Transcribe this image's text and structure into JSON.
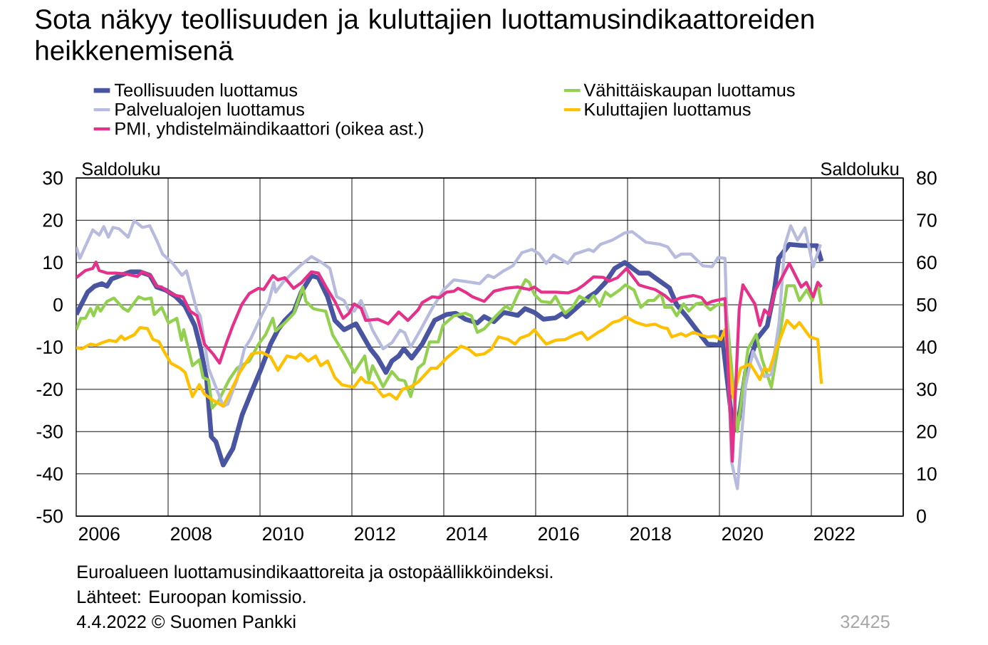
{
  "chart_data": {
    "type": "line",
    "title": "Sota näkyy teollisuuden ja kuluttajien luottamusindikaattoreiden heikkenemisenä",
    "ylabel": "Saldoluku",
    "y2label": "Saldoluku",
    "annotations": [
      "Euroalueen luottamusindikaattoreita ja ostopäällikköindeksi.",
      "Lähteet: Euroopan komissio.",
      "4.4.2022 © Suomen Pankki",
      "32425"
    ],
    "xlim": [
      2006,
      2024
    ],
    "xticks": [
      {
        "value": 2006.5,
        "label": "2006"
      },
      {
        "value": 2008.5,
        "label": "2008"
      },
      {
        "value": 2010.5,
        "label": "2010"
      },
      {
        "value": 2012.5,
        "label": "2012"
      },
      {
        "value": 2014.5,
        "label": "2014"
      },
      {
        "value": 2016.5,
        "label": "2016"
      },
      {
        "value": 2018.5,
        "label": "2018"
      },
      {
        "value": 2020.5,
        "label": "2020"
      },
      {
        "value": 2022.5,
        "label": "2022"
      },
      {
        "value": 2008,
        "label": null
      },
      {
        "value": 2010,
        "label": null
      },
      {
        "value": 2012,
        "label": null
      },
      {
        "value": 2014,
        "label": null
      },
      {
        "value": 2016,
        "label": null
      },
      {
        "value": 2018,
        "label": null
      },
      {
        "value": 2020,
        "label": null
      },
      {
        "value": 2022,
        "label": null
      }
    ],
    "ylim": [
      -50,
      30
    ],
    "yticks": [
      -50,
      -40,
      -30,
      -20,
      -10,
      0,
      10,
      20,
      30
    ],
    "y2lim": [
      0,
      80
    ],
    "y2ticks": [
      0,
      10,
      20,
      30,
      40,
      50,
      60,
      70,
      80
    ],
    "grid": true,
    "legend": "top",
    "series": [
      {
        "name": "Teollisuuden luottamus",
        "color": "#4a55a2",
        "x": [
          2006.0,
          2006.25,
          2006.4,
          2006.56,
          2006.67,
          2006.77,
          2006.98,
          2007.18,
          2007.39,
          2007.6,
          2007.75,
          2007.96,
          2008.17,
          2008.37,
          2008.58,
          2008.71,
          2008.84,
          2008.94,
          2009.04,
          2009.2,
          2009.41,
          2009.61,
          2009.82,
          2010.03,
          2010.23,
          2010.39,
          2010.54,
          2010.74,
          2010.9,
          2011.12,
          2011.27,
          2011.47,
          2011.63,
          2011.83,
          2012.09,
          2012.4,
          2012.56,
          2012.74,
          2012.87,
          2013.02,
          2013.13,
          2013.3,
          2013.53,
          2013.8,
          2014.06,
          2014.26,
          2014.47,
          2014.73,
          2014.88,
          2015.09,
          2015.3,
          2015.61,
          2015.77,
          2015.97,
          2016.17,
          2016.43,
          2016.59,
          2016.67,
          2016.9,
          2017.16,
          2017.32,
          2017.52,
          2017.72,
          2017.94,
          2018.25,
          2018.46,
          2018.65,
          2018.91,
          2019.07,
          2019.3,
          2019.58,
          2019.74,
          2020.0,
          2020.05,
          2020.3,
          2020.42,
          2020.57,
          2020.82,
          2021.04,
          2021.19,
          2021.29,
          2021.52,
          2021.81,
          2022.12,
          2022.22
        ],
        "values": [
          -2.3,
          3,
          4.4,
          5,
          4.4,
          6.1,
          7,
          7.8,
          7.8,
          7,
          4.2,
          3.4,
          1.9,
          -0.3,
          -4.9,
          -10.4,
          -17.7,
          -31.2,
          -32.4,
          -37.9,
          -34,
          -26.1,
          -20.5,
          -15,
          -9.3,
          -5.9,
          -3.7,
          -1.5,
          3,
          6.9,
          6.4,
          1.9,
          -3.7,
          -5.9,
          -4.5,
          -10.4,
          -12.6,
          -16,
          -13.3,
          -12.1,
          -10.4,
          -12.6,
          -9.3,
          -3.7,
          -2.3,
          -2,
          -3.4,
          -4.3,
          -2.8,
          -4,
          -1.8,
          -2.5,
          -0.9,
          -1.8,
          -3.4,
          -3.1,
          -2,
          -2.8,
          -0.6,
          1.9,
          3,
          5.3,
          8.6,
          10,
          7.5,
          7.5,
          6,
          4,
          0,
          -3,
          -7,
          -9.3,
          -9.5,
          -6.5,
          -30,
          -27,
          -16,
          -8,
          -5,
          3,
          11,
          14.3,
          14,
          14,
          10.3
        ]
      },
      {
        "name": "Vähittäiskaupan luottamus",
        "color": "#92d050",
        "x": [
          2006.0,
          2006.1,
          2006.2,
          2006.31,
          2006.38,
          2006.46,
          2006.53,
          2006.67,
          2006.82,
          2007.03,
          2007.13,
          2007.36,
          2007.49,
          2007.63,
          2007.7,
          2007.86,
          2008.01,
          2008.19,
          2008.29,
          2008.34,
          2008.53,
          2008.68,
          2008.76,
          2008.88,
          2008.96,
          2009.1,
          2009.2,
          2009.33,
          2009.5,
          2009.77,
          2009.97,
          2010.12,
          2010.28,
          2010.34,
          2010.54,
          2010.74,
          2010.93,
          2011.0,
          2011.16,
          2011.27,
          2011.43,
          2011.58,
          2011.83,
          2012.05,
          2012.28,
          2012.37,
          2012.45,
          2012.68,
          2012.87,
          2013.02,
          2013.15,
          2013.28,
          2013.44,
          2013.57,
          2013.69,
          2013.88,
          2013.98,
          2014.22,
          2014.47,
          2014.6,
          2014.73,
          2014.88,
          2015.14,
          2015.35,
          2015.46,
          2015.61,
          2015.78,
          2015.86,
          2015.97,
          2016.12,
          2016.33,
          2016.43,
          2016.54,
          2016.64,
          2016.8,
          2016.95,
          2017.16,
          2017.26,
          2017.39,
          2017.52,
          2017.63,
          2017.83,
          2017.95,
          2018.14,
          2018.29,
          2018.45,
          2018.57,
          2018.73,
          2018.81,
          2018.96,
          2019.07,
          2019.22,
          2019.33,
          2019.49,
          2019.64,
          2019.8,
          2019.95,
          2020.14,
          2020.39,
          2020.62,
          2020.8,
          2020.93,
          2021.13,
          2021.29,
          2021.47,
          2021.63,
          2021.74,
          2021.9,
          2022.02,
          2022.14,
          2022.22
        ],
        "values": [
          -5.9,
          -3.2,
          -3.2,
          -0.9,
          -2.6,
          -0.3,
          -1.5,
          0.8,
          1.6,
          -0.9,
          -1.5,
          1.9,
          1.3,
          1.6,
          -2.3,
          -0.6,
          -4.3,
          -3.2,
          -8.4,
          -5.9,
          -14.4,
          -13,
          -17.2,
          -17.8,
          -24.4,
          -22.7,
          -20.5,
          -17.7,
          -15,
          -13.3,
          -9.3,
          -7.1,
          -3.2,
          -6.2,
          -4.3,
          -2,
          4.2,
          0.8,
          -0.9,
          -1.2,
          -1.5,
          -7.1,
          -11.6,
          -16,
          -12.1,
          -17.7,
          -14.4,
          -19.4,
          -15.8,
          -17.7,
          -18,
          -21.7,
          -15,
          -13.8,
          -8.8,
          -8.8,
          -4.9,
          -2.6,
          -2,
          -2.6,
          -6.5,
          -5.7,
          -2.6,
          -0.3,
          -1.2,
          2.5,
          5.9,
          5.3,
          2.5,
          0.8,
          0.5,
          2,
          -0.3,
          -2,
          -0.6,
          2,
          0.8,
          2.2,
          -0.3,
          3,
          2,
          3.5,
          4.7,
          3.5,
          -0.6,
          1,
          1,
          2.7,
          -0.6,
          -0.6,
          -2.6,
          0.2,
          -1.5,
          0.2,
          0.5,
          -1.2,
          0,
          0,
          -30,
          -10.5,
          -7,
          -13,
          -19.5,
          -9,
          4.5,
          4.5,
          1,
          3.5,
          1,
          5,
          0
        ]
      },
      {
        "name": "Palvelualojen luottamus",
        "color": "#b7bbdd",
        "x": [
          2006.0,
          2006.08,
          2006.36,
          2006.5,
          2006.6,
          2006.7,
          2006.8,
          2006.93,
          2007.13,
          2007.26,
          2007.44,
          2007.6,
          2007.75,
          2007.88,
          2008.1,
          2008.3,
          2008.4,
          2008.63,
          2008.7,
          2008.88,
          2009.2,
          2009.3,
          2009.5,
          2009.66,
          2009.8,
          2010.03,
          2010.19,
          2010.3,
          2010.34,
          2010.5,
          2010.7,
          2010.9,
          2011.12,
          2011.37,
          2011.52,
          2011.67,
          2011.83,
          2011.94,
          2012.05,
          2012.2,
          2012.45,
          2012.68,
          2012.87,
          2013.05,
          2013.15,
          2013.28,
          2013.49,
          2013.75,
          2014.0,
          2014.22,
          2014.47,
          2014.78,
          2014.96,
          2015.09,
          2015.3,
          2015.5,
          2015.7,
          2015.92,
          2016.08,
          2016.23,
          2016.39,
          2016.7,
          2016.85,
          2017.16,
          2017.26,
          2017.41,
          2017.67,
          2017.94,
          2018.1,
          2018.4,
          2018.71,
          2018.87,
          2019.04,
          2019.17,
          2019.38,
          2019.64,
          2019.84,
          2019.97,
          2020.12,
          2020.26,
          2020.39,
          2020.57,
          2020.73,
          2020.98,
          2021.13,
          2021.3,
          2021.42,
          2021.55,
          2021.7,
          2021.86,
          2022.04,
          2022.2
        ],
        "values": [
          13.7,
          11,
          17.7,
          16.5,
          18.5,
          16,
          18.3,
          18,
          16,
          19.9,
          18.3,
          18.7,
          15.3,
          12,
          9.8,
          7,
          8,
          -1.5,
          -2.6,
          -15,
          -24,
          -23.5,
          -17.7,
          -10.4,
          -8,
          -2.6,
          0.8,
          5.3,
          3,
          5.3,
          7.5,
          9.5,
          11.4,
          9.8,
          8.6,
          1.9,
          1,
          -1.5,
          -1.5,
          1,
          -6,
          -10.4,
          -9,
          -6,
          -6.6,
          -10,
          -6,
          -0.8,
          3.6,
          5.9,
          5.5,
          5,
          7,
          6.4,
          8,
          9.2,
          12.3,
          13.1,
          12,
          9.8,
          11.8,
          9.8,
          12,
          13.1,
          12.6,
          14.3,
          15.3,
          17,
          17.3,
          14.8,
          14.3,
          13.7,
          11.2,
          12,
          12,
          9.2,
          9,
          11.2,
          11,
          -37,
          -43.5,
          -19,
          -11,
          -17,
          -16.5,
          -4,
          14,
          18.7,
          15.3,
          18.2,
          9,
          14.3
        ]
      },
      {
        "name": "Kuluttajien luottamus",
        "color": "#ffc000",
        "x": [
          2006.0,
          2006.12,
          2006.31,
          2006.43,
          2006.56,
          2006.72,
          2006.87,
          2006.98,
          2007.05,
          2007.26,
          2007.39,
          2007.55,
          2007.67,
          2007.8,
          2007.91,
          2008.06,
          2008.26,
          2008.37,
          2008.53,
          2008.68,
          2008.79,
          2008.95,
          2009.2,
          2009.36,
          2009.56,
          2009.82,
          2010.03,
          2010.23,
          2010.39,
          2010.59,
          2010.78,
          2010.88,
          2011.05,
          2011.21,
          2011.32,
          2011.47,
          2011.63,
          2011.78,
          2011.94,
          2012.05,
          2012.2,
          2012.3,
          2012.45,
          2012.68,
          2012.82,
          2012.97,
          2013.1,
          2013.28,
          2013.44,
          2013.72,
          2013.85,
          2014.06,
          2014.26,
          2014.37,
          2014.53,
          2014.7,
          2014.88,
          2015.04,
          2015.19,
          2015.4,
          2015.55,
          2015.66,
          2015.86,
          2015.97,
          2016.08,
          2016.23,
          2016.43,
          2016.64,
          2016.85,
          2017.0,
          2017.13,
          2017.36,
          2017.47,
          2017.67,
          2017.83,
          2017.95,
          2018.19,
          2018.4,
          2018.6,
          2018.76,
          2018.87,
          2018.96,
          2019.17,
          2019.27,
          2019.43,
          2019.58,
          2019.74,
          2019.9,
          2020.03,
          2020.12,
          2020.3,
          2020.46,
          2020.67,
          2020.88,
          2020.98,
          2021.08,
          2021.24,
          2021.47,
          2021.63,
          2021.74,
          2021.97,
          2022.14,
          2022.22
        ],
        "values": [
          -10.1,
          -10.4,
          -9.3,
          -9.6,
          -9,
          -8.4,
          -8.7,
          -7.4,
          -8.2,
          -7.1,
          -5.4,
          -5.6,
          -8.2,
          -8.7,
          -11,
          -13.8,
          -15,
          -16,
          -21.7,
          -18.9,
          -21.1,
          -22.4,
          -24,
          -20.5,
          -16,
          -11.6,
          -11.2,
          -12.3,
          -15.5,
          -12.1,
          -12.6,
          -11.6,
          -13.3,
          -12.1,
          -14.4,
          -13.3,
          -17.2,
          -18.9,
          -19.3,
          -19.4,
          -17.2,
          -18.3,
          -18.5,
          -21.7,
          -21.1,
          -22.3,
          -20,
          -19.4,
          -18.3,
          -15,
          -15,
          -12.6,
          -10.8,
          -9.8,
          -10.4,
          -11.9,
          -11.6,
          -10.4,
          -7.6,
          -8.2,
          -9.3,
          -7.9,
          -7.1,
          -5.9,
          -7.4,
          -9.3,
          -8.4,
          -8.2,
          -7.1,
          -6.5,
          -8.2,
          -6.5,
          -5.9,
          -4.2,
          -3.7,
          -2.8,
          -4.2,
          -4.9,
          -4.6,
          -5.4,
          -5.6,
          -7.6,
          -6.8,
          -7.4,
          -6.5,
          -7.1,
          -7.6,
          -7.4,
          -8.2,
          -5.9,
          -22,
          -15,
          -14,
          -17.7,
          -15,
          -15.6,
          -10.4,
          -3.7,
          -5.5,
          -4.2,
          -7.6,
          -8.2,
          -18.7
        ]
      },
      {
        "name": "PMI, yhdistelmäindikaattori (oikea ast.)",
        "color": "#e6318a",
        "axis": "y2",
        "x": [
          2006.0,
          2006.2,
          2006.36,
          2006.43,
          2006.5,
          2006.67,
          2006.87,
          2007.08,
          2007.33,
          2007.44,
          2007.63,
          2007.75,
          2007.86,
          2008.01,
          2008.17,
          2008.32,
          2008.48,
          2008.63,
          2008.79,
          2008.99,
          2009.12,
          2009.26,
          2009.41,
          2009.61,
          2009.77,
          2009.97,
          2010.08,
          2010.28,
          2010.39,
          2010.54,
          2010.73,
          2010.9,
          2011.12,
          2011.27,
          2011.47,
          2011.63,
          2011.81,
          2011.94,
          2012.05,
          2012.2,
          2012.3,
          2012.56,
          2012.79,
          2013.02,
          2013.22,
          2013.44,
          2013.53,
          2013.75,
          2013.91,
          2014.06,
          2014.22,
          2014.31,
          2014.47,
          2014.62,
          2014.88,
          2015.09,
          2015.35,
          2015.61,
          2015.86,
          2015.97,
          2016.12,
          2016.43,
          2016.7,
          2016.9,
          2017.05,
          2017.26,
          2017.47,
          2017.6,
          2017.78,
          2017.98,
          2018.25,
          2018.4,
          2018.6,
          2018.81,
          2018.96,
          2019.17,
          2019.43,
          2019.61,
          2019.72,
          2019.84,
          2020.12,
          2020.28,
          2020.43,
          2020.51,
          2020.77,
          2020.88,
          2020.98,
          2021.08,
          2021.21,
          2021.52,
          2021.78,
          2021.89,
          2022.04,
          2022.14,
          2022.22
        ],
        "values": [
          56.4,
          58.1,
          58.6,
          60.1,
          58.1,
          57.5,
          57.5,
          57.3,
          56.7,
          57.8,
          56.8,
          54.4,
          54.2,
          53,
          52.2,
          51.9,
          48.5,
          47.4,
          40.7,
          38.2,
          36.2,
          40.7,
          45.1,
          50.2,
          52.7,
          53.9,
          53.6,
          56.9,
          55.9,
          56.4,
          53.9,
          55.2,
          57.8,
          57.5,
          53.6,
          50.8,
          46.8,
          48,
          50.2,
          49.2,
          46.3,
          46.6,
          45.5,
          48.3,
          46.3,
          48.8,
          50.5,
          51.9,
          51.7,
          53,
          53.2,
          53.9,
          53,
          51.9,
          50.8,
          53.2,
          53.9,
          54.2,
          53.6,
          54.2,
          53,
          53,
          52.8,
          53.6,
          54.7,
          56.6,
          56.5,
          55.6,
          56.4,
          58.6,
          54.7,
          54.2,
          53.6,
          52.2,
          50.8,
          51.7,
          52.2,
          51.7,
          50.2,
          50.8,
          51.5,
          13,
          49,
          54.7,
          50.2,
          45.1,
          48.8,
          47.6,
          53.3,
          59.8,
          54.2,
          55.3,
          51.9,
          55.3,
          54.2
        ]
      }
    ]
  }
}
